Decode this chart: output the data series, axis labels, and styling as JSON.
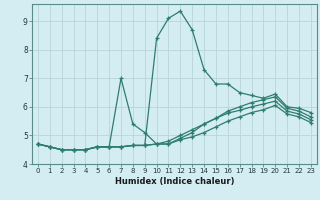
{
  "xlabel": "Humidex (Indice chaleur)",
  "bg_color": "#d4edf2",
  "grid_color": "#b8d4d8",
  "line_color": "#2e7d6e",
  "xlim": [
    -0.5,
    23.5
  ],
  "ylim": [
    4.0,
    9.6
  ],
  "x": [
    0,
    1,
    2,
    3,
    4,
    5,
    6,
    7,
    8,
    9,
    10,
    11,
    12,
    13,
    14,
    15,
    16,
    17,
    18,
    19,
    20,
    21,
    22,
    23
  ],
  "line1": [
    4.7,
    4.6,
    4.5,
    4.5,
    4.5,
    4.6,
    4.6,
    4.6,
    4.65,
    4.65,
    8.4,
    9.1,
    9.35,
    8.7,
    7.3,
    6.8,
    6.8,
    6.5,
    6.4,
    6.3,
    6.45,
    6.0,
    5.95,
    5.8
  ],
  "line2": [
    4.7,
    4.6,
    4.5,
    4.5,
    4.5,
    4.6,
    4.6,
    7.0,
    5.4,
    5.1,
    4.7,
    4.7,
    4.9,
    5.1,
    5.4,
    5.6,
    5.85,
    6.0,
    6.15,
    6.25,
    6.35,
    5.95,
    5.85,
    5.65
  ],
  "line3": [
    4.7,
    4.6,
    4.5,
    4.5,
    4.5,
    4.6,
    4.6,
    4.6,
    4.65,
    4.65,
    4.7,
    4.8,
    5.0,
    5.2,
    5.4,
    5.6,
    5.78,
    5.88,
    6.0,
    6.1,
    6.2,
    5.85,
    5.75,
    5.55
  ],
  "line4": [
    4.7,
    4.6,
    4.5,
    4.5,
    4.5,
    4.6,
    4.6,
    4.6,
    4.65,
    4.65,
    4.7,
    4.7,
    4.85,
    4.95,
    5.1,
    5.3,
    5.5,
    5.65,
    5.8,
    5.9,
    6.05,
    5.75,
    5.65,
    5.45
  ],
  "yticks": [
    4,
    5,
    6,
    7,
    8,
    9
  ],
  "xticks": [
    0,
    1,
    2,
    3,
    4,
    5,
    6,
    7,
    8,
    9,
    10,
    11,
    12,
    13,
    14,
    15,
    16,
    17,
    18,
    19,
    20,
    21,
    22,
    23
  ]
}
